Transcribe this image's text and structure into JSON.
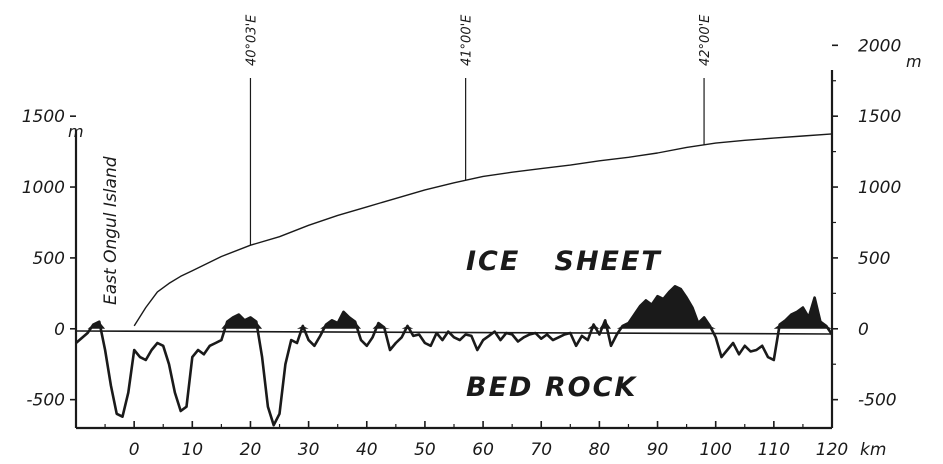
{
  "chart_data": {
    "type": "line",
    "title": "",
    "xlabel": "km",
    "ylabel_left": "m",
    "ylabel_right": "m",
    "xlim": [
      -10,
      120
    ],
    "ylim": [
      -700,
      1600
    ],
    "y_right_ticks": [
      -500,
      0,
      500,
      1000,
      1500,
      2000
    ],
    "y_left_ticks": [
      -500,
      0,
      500,
      1000,
      1500
    ],
    "x_ticks": [
      0,
      10,
      20,
      30,
      40,
      50,
      60,
      70,
      80,
      90,
      100,
      110,
      120
    ],
    "x_tick_labels": [
      "0",
      "10",
      "20",
      "30",
      "40",
      "50",
      "60",
      "70",
      "80",
      "90",
      "100",
      "110",
      "120"
    ],
    "y_left_tick_labels": [
      "-500",
      "0",
      "500",
      "1000",
      "1500"
    ],
    "y_right_tick_labels": [
      "-500",
      "0",
      "500",
      "1000",
      "1500",
      "2000"
    ],
    "grid": false,
    "annotations": {
      "island": "East Ongul Island",
      "ice": "ICE   SHEET",
      "bed": "BED ROCK",
      "meridians": [
        {
          "label": "40°03'E",
          "x": 20
        },
        {
          "label": "41°00'E",
          "x": 57
        },
        {
          "label": "42°00'E",
          "x": 98
        }
      ]
    },
    "series": [
      {
        "x": [
          0,
          2,
          4,
          6,
          8,
          10,
          15,
          20,
          25,
          30,
          35,
          40,
          45,
          50,
          55,
          60,
          65,
          70,
          75,
          80,
          85,
          90,
          95,
          100,
          105,
          110,
          115,
          120
        ],
        "values": [
          20,
          150,
          260,
          320,
          370,
          410,
          510,
          590,
          650,
          730,
          800,
          860,
          920,
          980,
          1030,
          1075,
          1105,
          1130,
          1155,
          1185,
          1210,
          1240,
          1280,
          1310,
          1330,
          1345,
          1360,
          1375
        ]
      },
      {
        "x": [
          -10,
          -8,
          -7,
          -6,
          -5,
          -4,
          -3,
          -2,
          -1,
          0,
          1,
          2,
          3,
          4,
          5,
          6,
          7,
          8,
          9,
          10,
          11,
          12,
          13,
          14,
          15,
          16,
          17,
          18,
          19,
          20,
          21,
          22,
          23,
          24,
          25,
          26,
          27,
          28,
          29,
          30,
          31,
          32,
          33,
          34,
          35,
          36,
          37,
          38,
          39,
          40,
          41,
          42,
          43,
          44,
          45,
          46,
          47,
          48,
          49,
          50,
          51,
          52,
          53,
          54,
          55,
          56,
          57,
          58,
          59,
          60,
          61,
          62,
          63,
          64,
          65,
          66,
          67,
          68,
          69,
          70,
          71,
          72,
          73,
          74,
          75,
          76,
          77,
          78,
          79,
          80,
          81,
          82,
          83,
          84,
          85,
          86,
          87,
          88,
          89,
          90,
          91,
          92,
          93,
          94,
          95,
          96,
          97,
          98,
          99,
          100,
          101,
          102,
          103,
          104,
          105,
          106,
          107,
          108,
          109,
          110,
          111,
          112,
          113,
          114,
          115,
          116,
          117,
          118,
          119,
          120
        ],
        "values": [
          -100,
          -30,
          30,
          50,
          -150,
          -400,
          -600,
          -620,
          -450,
          -150,
          -200,
          -220,
          -150,
          -100,
          -120,
          -250,
          -450,
          -580,
          -550,
          -200,
          -150,
          -180,
          -120,
          -100,
          -80,
          50,
          80,
          100,
          60,
          80,
          50,
          -200,
          -550,
          -680,
          -600,
          -250,
          -80,
          -100,
          20,
          -80,
          -120,
          -50,
          30,
          60,
          40,
          120,
          80,
          50,
          -80,
          -120,
          -60,
          40,
          10,
          -150,
          -100,
          -60,
          20,
          -50,
          -40,
          -100,
          -120,
          -30,
          -80,
          -20,
          -60,
          -80,
          -40,
          -50,
          -150,
          -80,
          -50,
          -20,
          -80,
          -30,
          -40,
          -90,
          -60,
          -40,
          -30,
          -70,
          -40,
          -80,
          -60,
          -40,
          -30,
          -120,
          -50,
          -80,
          30,
          -40,
          60,
          -120,
          -40,
          20,
          40,
          100,
          160,
          200,
          170,
          230,
          210,
          260,
          300,
          280,
          220,
          150,
          40,
          80,
          20,
          -60,
          -200,
          -150,
          -100,
          -180,
          -120,
          -160,
          -150,
          -120,
          -200,
          -220,
          30,
          60,
          100,
          120,
          150,
          80,
          220,
          50,
          20,
          -40
        ]
      }
    ]
  }
}
